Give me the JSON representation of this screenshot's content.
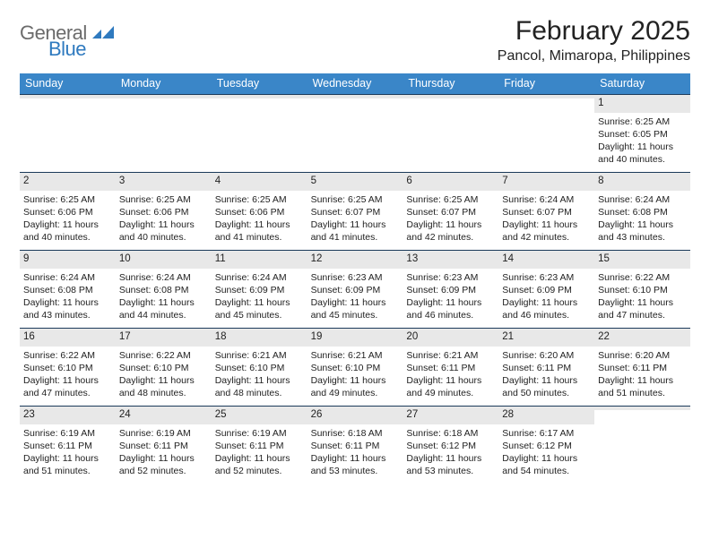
{
  "logo": {
    "word1": "General",
    "word2": "Blue"
  },
  "title": "February 2025",
  "location": "Pancol, Mimaropa, Philippines",
  "colors": {
    "header_bg": "#3a86c8",
    "header_text": "#ffffff",
    "row_border": "#1b3a5a",
    "daynum_bg": "#e8e8e8",
    "text": "#222222",
    "logo_gray": "#6b6b6b",
    "logo_blue": "#2f7abf",
    "background": "#ffffff"
  },
  "typography": {
    "title_fontsize": 30,
    "location_fontsize": 16,
    "dayheader_fontsize": 12.5,
    "cell_fontsize": 10.5
  },
  "day_labels": [
    "Sunday",
    "Monday",
    "Tuesday",
    "Wednesday",
    "Thursday",
    "Friday",
    "Saturday"
  ],
  "weeks": [
    [
      {
        "n": "",
        "lines": [
          "",
          "",
          "",
          ""
        ]
      },
      {
        "n": "",
        "lines": [
          "",
          "",
          "",
          ""
        ]
      },
      {
        "n": "",
        "lines": [
          "",
          "",
          "",
          ""
        ]
      },
      {
        "n": "",
        "lines": [
          "",
          "",
          "",
          ""
        ]
      },
      {
        "n": "",
        "lines": [
          "",
          "",
          "",
          ""
        ]
      },
      {
        "n": "",
        "lines": [
          "",
          "",
          "",
          ""
        ]
      },
      {
        "n": "1",
        "lines": [
          "Sunrise: 6:25 AM",
          "Sunset: 6:05 PM",
          "Daylight: 11 hours",
          "and 40 minutes."
        ]
      }
    ],
    [
      {
        "n": "2",
        "lines": [
          "Sunrise: 6:25 AM",
          "Sunset: 6:06 PM",
          "Daylight: 11 hours",
          "and 40 minutes."
        ]
      },
      {
        "n": "3",
        "lines": [
          "Sunrise: 6:25 AM",
          "Sunset: 6:06 PM",
          "Daylight: 11 hours",
          "and 40 minutes."
        ]
      },
      {
        "n": "4",
        "lines": [
          "Sunrise: 6:25 AM",
          "Sunset: 6:06 PM",
          "Daylight: 11 hours",
          "and 41 minutes."
        ]
      },
      {
        "n": "5",
        "lines": [
          "Sunrise: 6:25 AM",
          "Sunset: 6:07 PM",
          "Daylight: 11 hours",
          "and 41 minutes."
        ]
      },
      {
        "n": "6",
        "lines": [
          "Sunrise: 6:25 AM",
          "Sunset: 6:07 PM",
          "Daylight: 11 hours",
          "and 42 minutes."
        ]
      },
      {
        "n": "7",
        "lines": [
          "Sunrise: 6:24 AM",
          "Sunset: 6:07 PM",
          "Daylight: 11 hours",
          "and 42 minutes."
        ]
      },
      {
        "n": "8",
        "lines": [
          "Sunrise: 6:24 AM",
          "Sunset: 6:08 PM",
          "Daylight: 11 hours",
          "and 43 minutes."
        ]
      }
    ],
    [
      {
        "n": "9",
        "lines": [
          "Sunrise: 6:24 AM",
          "Sunset: 6:08 PM",
          "Daylight: 11 hours",
          "and 43 minutes."
        ]
      },
      {
        "n": "10",
        "lines": [
          "Sunrise: 6:24 AM",
          "Sunset: 6:08 PM",
          "Daylight: 11 hours",
          "and 44 minutes."
        ]
      },
      {
        "n": "11",
        "lines": [
          "Sunrise: 6:24 AM",
          "Sunset: 6:09 PM",
          "Daylight: 11 hours",
          "and 45 minutes."
        ]
      },
      {
        "n": "12",
        "lines": [
          "Sunrise: 6:23 AM",
          "Sunset: 6:09 PM",
          "Daylight: 11 hours",
          "and 45 minutes."
        ]
      },
      {
        "n": "13",
        "lines": [
          "Sunrise: 6:23 AM",
          "Sunset: 6:09 PM",
          "Daylight: 11 hours",
          "and 46 minutes."
        ]
      },
      {
        "n": "14",
        "lines": [
          "Sunrise: 6:23 AM",
          "Sunset: 6:09 PM",
          "Daylight: 11 hours",
          "and 46 minutes."
        ]
      },
      {
        "n": "15",
        "lines": [
          "Sunrise: 6:22 AM",
          "Sunset: 6:10 PM",
          "Daylight: 11 hours",
          "and 47 minutes."
        ]
      }
    ],
    [
      {
        "n": "16",
        "lines": [
          "Sunrise: 6:22 AM",
          "Sunset: 6:10 PM",
          "Daylight: 11 hours",
          "and 47 minutes."
        ]
      },
      {
        "n": "17",
        "lines": [
          "Sunrise: 6:22 AM",
          "Sunset: 6:10 PM",
          "Daylight: 11 hours",
          "and 48 minutes."
        ]
      },
      {
        "n": "18",
        "lines": [
          "Sunrise: 6:21 AM",
          "Sunset: 6:10 PM",
          "Daylight: 11 hours",
          "and 48 minutes."
        ]
      },
      {
        "n": "19",
        "lines": [
          "Sunrise: 6:21 AM",
          "Sunset: 6:10 PM",
          "Daylight: 11 hours",
          "and 49 minutes."
        ]
      },
      {
        "n": "20",
        "lines": [
          "Sunrise: 6:21 AM",
          "Sunset: 6:11 PM",
          "Daylight: 11 hours",
          "and 49 minutes."
        ]
      },
      {
        "n": "21",
        "lines": [
          "Sunrise: 6:20 AM",
          "Sunset: 6:11 PM",
          "Daylight: 11 hours",
          "and 50 minutes."
        ]
      },
      {
        "n": "22",
        "lines": [
          "Sunrise: 6:20 AM",
          "Sunset: 6:11 PM",
          "Daylight: 11 hours",
          "and 51 minutes."
        ]
      }
    ],
    [
      {
        "n": "23",
        "lines": [
          "Sunrise: 6:19 AM",
          "Sunset: 6:11 PM",
          "Daylight: 11 hours",
          "and 51 minutes."
        ]
      },
      {
        "n": "24",
        "lines": [
          "Sunrise: 6:19 AM",
          "Sunset: 6:11 PM",
          "Daylight: 11 hours",
          "and 52 minutes."
        ]
      },
      {
        "n": "25",
        "lines": [
          "Sunrise: 6:19 AM",
          "Sunset: 6:11 PM",
          "Daylight: 11 hours",
          "and 52 minutes."
        ]
      },
      {
        "n": "26",
        "lines": [
          "Sunrise: 6:18 AM",
          "Sunset: 6:11 PM",
          "Daylight: 11 hours",
          "and 53 minutes."
        ]
      },
      {
        "n": "27",
        "lines": [
          "Sunrise: 6:18 AM",
          "Sunset: 6:12 PM",
          "Daylight: 11 hours",
          "and 53 minutes."
        ]
      },
      {
        "n": "28",
        "lines": [
          "Sunrise: 6:17 AM",
          "Sunset: 6:12 PM",
          "Daylight: 11 hours",
          "and 54 minutes."
        ]
      },
      {
        "n": "",
        "lines": [
          "",
          "",
          "",
          ""
        ]
      }
    ]
  ]
}
